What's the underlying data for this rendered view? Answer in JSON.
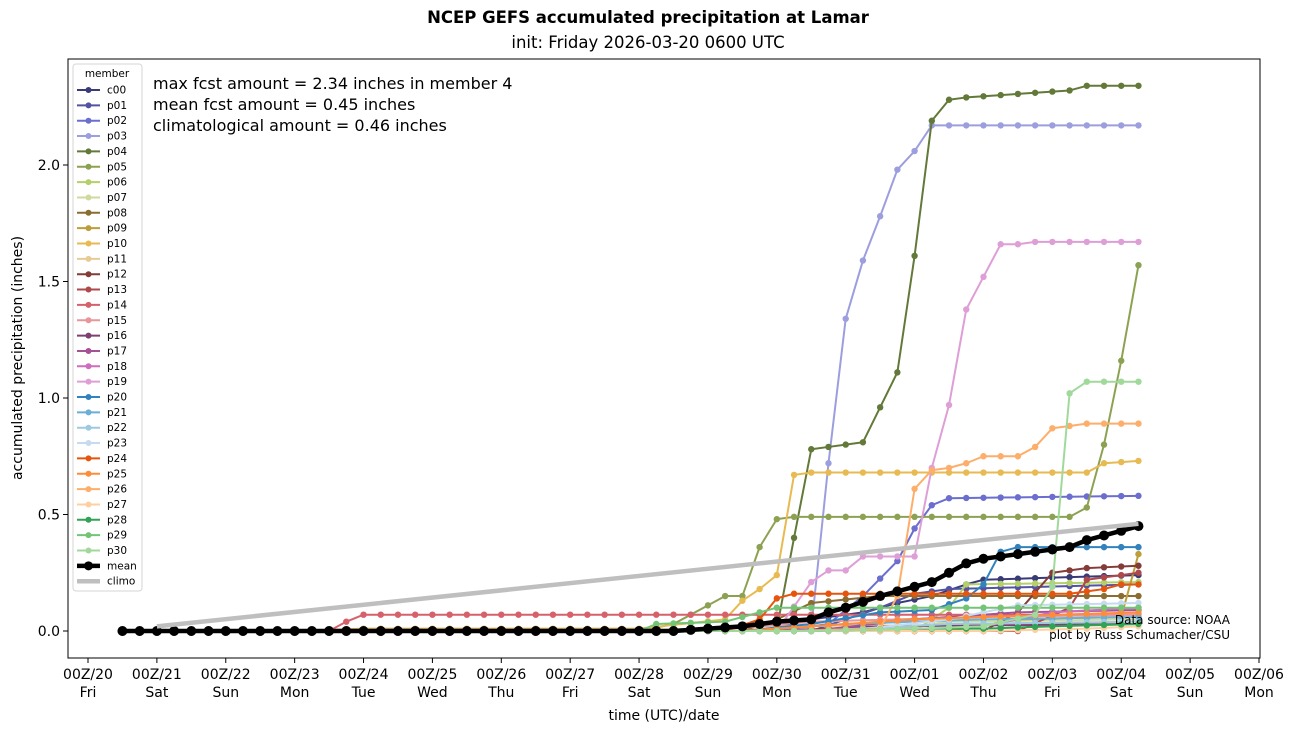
{
  "chart_data": {
    "type": "line",
    "title": "NCEP GEFS accumulated precipitation at Lamar",
    "subtitle": "init: Friday 2026-03-20 0600 UTC",
    "xlabel": "time (UTC)/date",
    "ylabel": "accumulated precipitation (inches)",
    "ylim": [
      -0.12,
      2.45
    ],
    "yticks": [
      0.0,
      0.5,
      1.0,
      1.5,
      2.0
    ],
    "ytick_labels": [
      "0.0",
      "0.5",
      "1.0",
      "1.5",
      "2.0"
    ],
    "x_units": "days since 00Z/20",
    "xlim": [
      -0.3,
      17.0
    ],
    "xticks": [
      {
        "day": 0,
        "label": "00Z/20",
        "dow": "Fri"
      },
      {
        "day": 1,
        "label": "00Z/21",
        "dow": "Sat"
      },
      {
        "day": 2,
        "label": "00Z/22",
        "dow": "Sun"
      },
      {
        "day": 3,
        "label": "00Z/23",
        "dow": "Mon"
      },
      {
        "day": 4,
        "label": "00Z/24",
        "dow": "Tue"
      },
      {
        "day": 5,
        "label": "00Z/25",
        "dow": "Wed"
      },
      {
        "day": 6,
        "label": "00Z/26",
        "dow": "Thu"
      },
      {
        "day": 7,
        "label": "00Z/27",
        "dow": "Fri"
      },
      {
        "day": 8,
        "label": "00Z/28",
        "dow": "Sat"
      },
      {
        "day": 9,
        "label": "00Z/29",
        "dow": "Sun"
      },
      {
        "day": 10,
        "label": "00Z/30",
        "dow": "Mon"
      },
      {
        "day": 11,
        "label": "00Z/31",
        "dow": "Tue"
      },
      {
        "day": 12,
        "label": "00Z/01",
        "dow": "Wed"
      },
      {
        "day": 13,
        "label": "00Z/02",
        "dow": "Thu"
      },
      {
        "day": 14,
        "label": "00Z/03",
        "dow": "Fri"
      },
      {
        "day": 15,
        "label": "00Z/04",
        "dow": "Sat"
      },
      {
        "day": 16,
        "label": "00Z/05",
        "dow": "Sun"
      },
      {
        "day": 17,
        "label": "00Z/06",
        "dow": "Mon"
      }
    ],
    "time_axis": {
      "first_point_day": 0.5,
      "step_days": 0.25,
      "n_points": 60
    },
    "legend": {
      "title": "member",
      "placement": "upper-left"
    },
    "annotations": [
      "max fcst amount = 2.34 inches in member 4",
      "mean fcst amount = 0.45 inches",
      "climatological amount = 0.46 inches"
    ],
    "credits": [
      "Data source: NOAA",
      "plot by Russ Schumacher/CSU"
    ],
    "series_encoding": "each series lists [step_index, value] breakpoints; values between breakpoints are linearly interpolated; value before the first breakpoint is 0",
    "series": [
      {
        "name": "c00",
        "color": "#393b79",
        "points": [
          [
            37,
            0
          ],
          [
            40,
            0.05
          ],
          [
            43,
            0.08
          ],
          [
            45,
            0.12
          ],
          [
            47,
            0.15
          ],
          [
            49,
            0.2
          ],
          [
            50,
            0.22
          ],
          [
            59,
            0.24
          ]
        ]
      },
      {
        "name": "p01",
        "color": "#5254a3",
        "points": [
          [
            40,
            0
          ],
          [
            42,
            0.05
          ],
          [
            44,
            0.1
          ],
          [
            46,
            0.16
          ],
          [
            48,
            0.18
          ],
          [
            59,
            0.2
          ]
        ]
      },
      {
        "name": "p02",
        "color": "#6b6ecf",
        "points": [
          [
            38,
            0
          ],
          [
            41,
            0.03
          ],
          [
            43,
            0.15
          ],
          [
            45,
            0.3
          ],
          [
            46,
            0.44
          ],
          [
            47,
            0.54
          ],
          [
            48,
            0.57
          ],
          [
            59,
            0.58
          ]
        ]
      },
      {
        "name": "p03",
        "color": "#9c9ede",
        "points": [
          [
            39,
            0
          ],
          [
            40,
            0.01
          ],
          [
            41,
            0.72
          ],
          [
            42,
            1.34
          ],
          [
            43,
            1.59
          ],
          [
            44,
            1.78
          ],
          [
            45,
            1.98
          ],
          [
            46,
            2.06
          ],
          [
            47,
            2.17
          ],
          [
            59,
            2.17
          ]
        ]
      },
      {
        "name": "p04",
        "color": "#637939",
        "points": [
          [
            36,
            0
          ],
          [
            38,
            0.01
          ],
          [
            39,
            0.4
          ],
          [
            40,
            0.78
          ],
          [
            41,
            0.79
          ],
          [
            42,
            0.8
          ],
          [
            43,
            0.81
          ],
          [
            44,
            0.96
          ],
          [
            45,
            1.11
          ],
          [
            46,
            1.61
          ],
          [
            47,
            2.19
          ],
          [
            48,
            2.28
          ],
          [
            49,
            2.29
          ],
          [
            51,
            2.3
          ],
          [
            53,
            2.31
          ],
          [
            55,
            2.32
          ],
          [
            56,
            2.34
          ],
          [
            59,
            2.34
          ]
        ]
      },
      {
        "name": "p05",
        "color": "#8ca252",
        "points": [
          [
            30,
            0
          ],
          [
            32,
            0.03
          ],
          [
            34,
            0.11
          ],
          [
            35,
            0.15
          ],
          [
            36,
            0.15
          ],
          [
            37,
            0.36
          ],
          [
            38,
            0.48
          ],
          [
            39,
            0.49
          ],
          [
            55,
            0.49
          ],
          [
            56,
            0.53
          ],
          [
            57,
            0.8
          ],
          [
            58,
            1.16
          ],
          [
            58.6,
            1.47
          ],
          [
            59,
            1.57
          ]
        ]
      },
      {
        "name": "p06",
        "color": "#b5cf6b",
        "points": [
          [
            46,
            0
          ],
          [
            48,
            0.1
          ],
          [
            49,
            0.2
          ],
          [
            59,
            0.21
          ]
        ]
      },
      {
        "name": "p07",
        "color": "#cedb9c",
        "points": [
          [
            44,
            0
          ],
          [
            48,
            0.04
          ],
          [
            59,
            0.05
          ]
        ]
      },
      {
        "name": "p08",
        "color": "#8c6d31",
        "points": [
          [
            36,
            0
          ],
          [
            38,
            0.05
          ],
          [
            40,
            0.12
          ],
          [
            44,
            0.15
          ],
          [
            59,
            0.15
          ]
        ]
      },
      {
        "name": "p09",
        "color": "#bd9e39",
        "points": [
          [
            48,
            0
          ],
          [
            52,
            0.05
          ],
          [
            58,
            0.06
          ],
          [
            58.7,
            0.2
          ],
          [
            59,
            0.33
          ]
        ]
      },
      {
        "name": "p10",
        "color": "#e7ba52",
        "points": [
          [
            10,
            0
          ],
          [
            14,
            0.01
          ],
          [
            30,
            0.01
          ],
          [
            35,
            0.05
          ],
          [
            36,
            0.13
          ],
          [
            37,
            0.18
          ],
          [
            38,
            0.24
          ],
          [
            38.5,
            0.62
          ],
          [
            39,
            0.67
          ],
          [
            40,
            0.68
          ],
          [
            56,
            0.68
          ],
          [
            57,
            0.72
          ],
          [
            59,
            0.73
          ]
        ]
      },
      {
        "name": "p11",
        "color": "#e7cb94",
        "points": [
          [
            30,
            0
          ],
          [
            36,
            0.02
          ],
          [
            59,
            0.03
          ]
        ]
      },
      {
        "name": "p12",
        "color": "#843c39",
        "points": [
          [
            50,
            0
          ],
          [
            52,
            0.08
          ],
          [
            54,
            0.25
          ],
          [
            55,
            0.26
          ],
          [
            56,
            0.27
          ],
          [
            59,
            0.28
          ]
        ]
      },
      {
        "name": "p13",
        "color": "#ad494a",
        "points": [
          [
            52,
            0
          ],
          [
            55,
            0.1
          ],
          [
            56,
            0.22
          ],
          [
            57,
            0.23
          ],
          [
            58,
            0.24
          ],
          [
            59,
            0.25
          ]
        ]
      },
      {
        "name": "p14",
        "color": "#d6616b",
        "points": [
          [
            12,
            0
          ],
          [
            13,
            0.04
          ],
          [
            14,
            0.07
          ],
          [
            59,
            0.07
          ]
        ]
      },
      {
        "name": "p15",
        "color": "#e7969c",
        "points": [
          [
            34,
            0
          ],
          [
            40,
            0.04
          ],
          [
            50,
            0.06
          ],
          [
            59,
            0.07
          ]
        ]
      },
      {
        "name": "p16",
        "color": "#7b4173",
        "points": [
          [
            38,
            0
          ],
          [
            44,
            0.02
          ],
          [
            59,
            0.03
          ]
        ]
      },
      {
        "name": "p17",
        "color": "#a55194",
        "points": [
          [
            40,
            0
          ],
          [
            46,
            0.05
          ],
          [
            52,
            0.08
          ],
          [
            59,
            0.09
          ]
        ]
      },
      {
        "name": "p18",
        "color": "#ce6dbd",
        "points": [
          [
            44,
            0
          ],
          [
            50,
            0.02
          ],
          [
            52,
            0.05
          ],
          [
            54,
            0.08
          ],
          [
            59,
            0.1
          ]
        ]
      },
      {
        "name": "p19",
        "color": "#de9ed6",
        "points": [
          [
            38,
            0
          ],
          [
            40,
            0.21
          ],
          [
            41,
            0.26
          ],
          [
            42,
            0.26
          ],
          [
            43,
            0.32
          ],
          [
            46,
            0.32
          ],
          [
            47,
            0.7
          ],
          [
            48,
            0.97
          ],
          [
            49,
            1.38
          ],
          [
            50,
            1.52
          ],
          [
            51,
            1.66
          ],
          [
            52,
            1.66
          ],
          [
            53,
            1.67
          ],
          [
            59,
            1.67
          ]
        ]
      },
      {
        "name": "p20",
        "color": "#3182bd",
        "points": [
          [
            36,
            0
          ],
          [
            40,
            0.03
          ],
          [
            44,
            0.08
          ],
          [
            47,
            0.09
          ],
          [
            49,
            0.14
          ],
          [
            50,
            0.2
          ],
          [
            51,
            0.34
          ],
          [
            52,
            0.36
          ],
          [
            59,
            0.36
          ]
        ]
      },
      {
        "name": "p21",
        "color": "#6baed6",
        "points": [
          [
            36,
            0
          ],
          [
            42,
            0.03
          ],
          [
            50,
            0.05
          ],
          [
            59,
            0.06
          ]
        ]
      },
      {
        "name": "p22",
        "color": "#9ecae1",
        "points": [
          [
            40,
            0
          ],
          [
            48,
            0.03
          ],
          [
            59,
            0.04
          ]
        ]
      },
      {
        "name": "p23",
        "color": "#c6dbef",
        "points": [
          [
            42,
            0
          ],
          [
            48,
            0.05
          ],
          [
            52,
            0.11
          ],
          [
            59,
            0.12
          ]
        ]
      },
      {
        "name": "p24",
        "color": "#e6550d",
        "points": [
          [
            35,
            0
          ],
          [
            37,
            0.05
          ],
          [
            38,
            0.14
          ],
          [
            39,
            0.16
          ],
          [
            50,
            0.16
          ],
          [
            55,
            0.16
          ],
          [
            57,
            0.18
          ],
          [
            58,
            0.2
          ],
          [
            59,
            0.2
          ]
        ]
      },
      {
        "name": "p25",
        "color": "#fd8d3c",
        "points": [
          [
            36,
            0
          ],
          [
            40,
            0.02
          ],
          [
            46,
            0.05
          ],
          [
            50,
            0.06
          ],
          [
            59,
            0.08
          ]
        ]
      },
      {
        "name": "p26",
        "color": "#fdae6b",
        "points": [
          [
            38,
            0
          ],
          [
            44,
            0.01
          ],
          [
            45,
            0.15
          ],
          [
            46,
            0.61
          ],
          [
            47,
            0.69
          ],
          [
            48,
            0.7
          ],
          [
            49,
            0.72
          ],
          [
            50,
            0.75
          ],
          [
            52,
            0.75
          ],
          [
            53,
            0.79
          ],
          [
            54,
            0.87
          ],
          [
            55,
            0.88
          ],
          [
            56,
            0.89
          ],
          [
            59,
            0.89
          ]
        ]
      },
      {
        "name": "p27",
        "color": "#fdd0a2",
        "points": [
          [
            50,
            0
          ],
          [
            56,
            0.01
          ],
          [
            59,
            0.02
          ]
        ]
      },
      {
        "name": "p28",
        "color": "#31a354",
        "points": [
          [
            40,
            0
          ],
          [
            46,
            0.01
          ],
          [
            50,
            0.01
          ],
          [
            54,
            0.02
          ],
          [
            59,
            0.03
          ]
        ]
      },
      {
        "name": "p29",
        "color": "#74c476",
        "points": [
          [
            30,
            0
          ],
          [
            31,
            0.03
          ],
          [
            35,
            0.04
          ],
          [
            37,
            0.08
          ],
          [
            38,
            0.1
          ],
          [
            59,
            0.1
          ]
        ]
      },
      {
        "name": "p30",
        "color": "#a1d99b",
        "points": [
          [
            40,
            0
          ],
          [
            46,
            0.01
          ],
          [
            50,
            0.02
          ],
          [
            53,
            0.07
          ],
          [
            54,
            0.19
          ],
          [
            55,
            1.02
          ],
          [
            56,
            1.07
          ],
          [
            59,
            1.07
          ]
        ]
      },
      {
        "name": "mean",
        "color": "#000000",
        "points": [
          [
            32,
            0
          ],
          [
            34,
            0.01
          ],
          [
            36,
            0.02
          ],
          [
            37,
            0.03
          ],
          [
            38,
            0.04
          ],
          [
            40,
            0.05
          ],
          [
            41,
            0.08
          ],
          [
            42,
            0.1
          ],
          [
            44,
            0.15
          ],
          [
            45,
            0.17
          ],
          [
            46,
            0.19
          ],
          [
            47,
            0.21
          ],
          [
            48,
            0.25
          ],
          [
            49,
            0.29
          ],
          [
            50,
            0.31
          ],
          [
            51,
            0.32
          ],
          [
            52,
            0.33
          ],
          [
            53,
            0.34
          ],
          [
            54,
            0.35
          ],
          [
            55,
            0.36
          ],
          [
            56,
            0.39
          ],
          [
            57,
            0.41
          ],
          [
            58,
            0.43
          ],
          [
            59,
            0.45
          ]
        ]
      },
      {
        "name": "climo",
        "color": "#bfbfbf",
        "line_only": true,
        "points": [
          [
            2,
            0.02
          ],
          [
            59,
            0.46
          ]
        ]
      }
    ]
  }
}
